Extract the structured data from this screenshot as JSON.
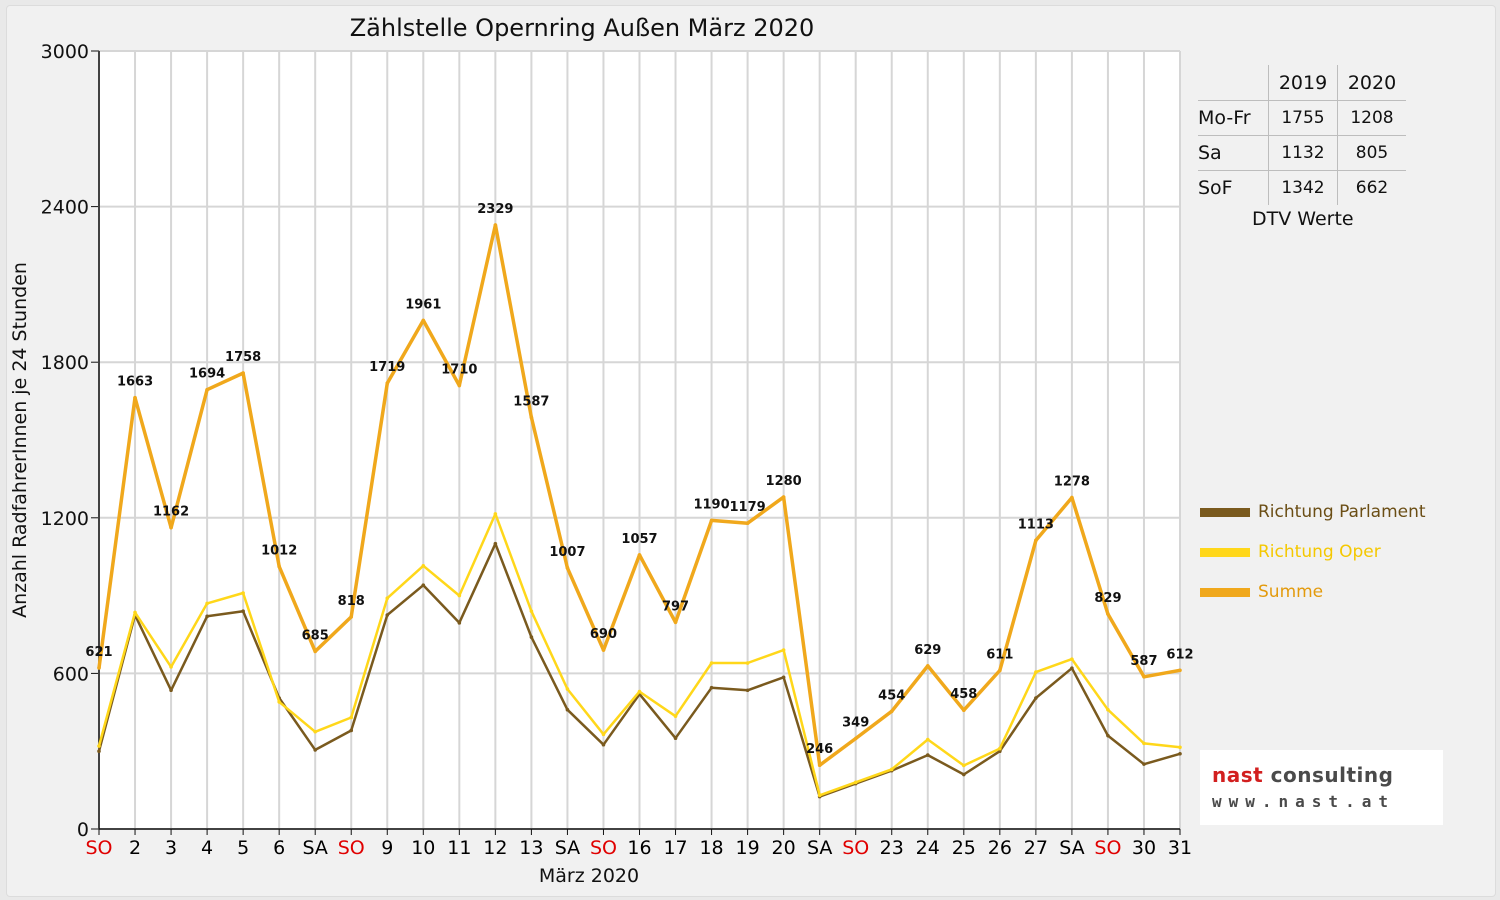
{
  "chart_data": {
    "type": "line",
    "title": "Zählstelle Opernring Außen März 2020",
    "xlabel": "März 2020",
    "ylabel": "Anzahl RadfahrerInnen je 24 Stunden",
    "ylim": [
      0,
      3000
    ],
    "yticks": [
      0,
      600,
      1200,
      1800,
      2400,
      3000
    ],
    "grid": true,
    "legend_position": "right",
    "categories": [
      "SO",
      "2",
      "3",
      "4",
      "5",
      "6",
      "SA",
      "SO",
      "9",
      "10",
      "11",
      "12",
      "13",
      "SA",
      "SO",
      "16",
      "17",
      "18",
      "19",
      "20",
      "SA",
      "SO",
      "23",
      "24",
      "25",
      "26",
      "27",
      "SA",
      "SO",
      "30",
      "31"
    ],
    "category_colors": [
      "#e00000",
      "#000000",
      "#000000",
      "#000000",
      "#000000",
      "#000000",
      "#000000",
      "#e00000",
      "#000000",
      "#000000",
      "#000000",
      "#000000",
      "#000000",
      "#000000",
      "#e00000",
      "#000000",
      "#000000",
      "#000000",
      "#000000",
      "#000000",
      "#000000",
      "#e00000",
      "#000000",
      "#000000",
      "#000000",
      "#000000",
      "#000000",
      "#000000",
      "#e00000",
      "#000000",
      "#000000"
    ],
    "series": [
      {
        "name": "Richtung Parlament",
        "color": "#7a5a1e",
        "values": [
          300,
          825,
          535,
          820,
          840,
          505,
          305,
          380,
          825,
          940,
          795,
          1100,
          740,
          460,
          325,
          520,
          350,
          545,
          535,
          585,
          125,
          175,
          225,
          285,
          210,
          300,
          505,
          620,
          360,
          250,
          290
        ]
      },
      {
        "name": "Richtung Oper",
        "color": "#ffd71a",
        "values": [
          320,
          835,
          625,
          870,
          910,
          490,
          375,
          430,
          890,
          1015,
          900,
          1215,
          840,
          540,
          365,
          530,
          435,
          640,
          640,
          690,
          130,
          180,
          230,
          345,
          245,
          310,
          605,
          655,
          460,
          330,
          315
        ]
      },
      {
        "name": "Summe",
        "color": "#f0a81c",
        "values": [
          621,
          1663,
          1162,
          1694,
          1758,
          1012,
          685,
          818,
          1719,
          1961,
          1710,
          2329,
          1587,
          1007,
          690,
          1057,
          797,
          1190,
          1179,
          1280,
          246,
          349,
          454,
          629,
          458,
          611,
          1113,
          1278,
          829,
          587,
          612
        ],
        "data_labels": true
      }
    ]
  },
  "dtv_table": {
    "caption": "DTV Werte",
    "columns": [
      "2019",
      "2020"
    ],
    "rows": [
      {
        "label": "Mo-Fr",
        "values": [
          "1755",
          "1208"
        ]
      },
      {
        "label": "Sa",
        "values": [
          "1132",
          "805"
        ]
      },
      {
        "label": "SoF",
        "values": [
          "1342",
          "662"
        ]
      }
    ]
  },
  "legend": [
    {
      "label": "Richtung Parlament",
      "color": "#7a5a1e",
      "text_color": "#6b4e15"
    },
    {
      "label": "Richtung Oper",
      "color": "#ffd71a",
      "text_color": "#f5c800"
    },
    {
      "label": "Summe",
      "color": "#f0a81c",
      "text_color": "#e39a0c"
    }
  ],
  "logo": {
    "name_part1": "nast",
    "name_part2": " consulting",
    "url": "www.nast.at"
  }
}
